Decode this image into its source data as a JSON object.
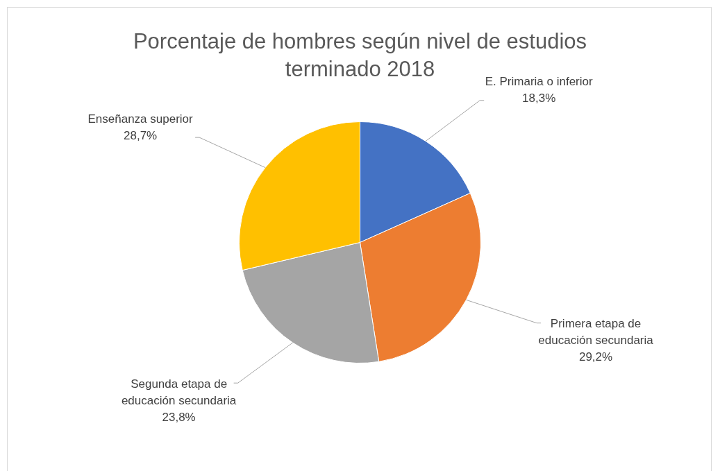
{
  "chart_data": {
    "type": "pie",
    "title": "Porcentaje de hombres según nivel de estudios terminado 2018",
    "categories": [
      "E. Primaria o inferior",
      "Primera etapa de educación secundaria",
      "Segunda etapa de educación secundaria",
      "Enseñanza superior"
    ],
    "values": [
      18.3,
      29.2,
      23.8,
      28.7
    ],
    "colors": [
      "#4472c4",
      "#ed7d31",
      "#a5a5a5",
      "#ffc000"
    ],
    "value_labels": [
      "18,3%",
      "29,2%",
      "23,8%",
      "28,7%"
    ],
    "legend": false
  }
}
